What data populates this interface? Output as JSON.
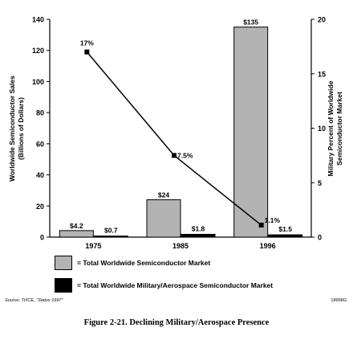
{
  "chart_data": {
    "type": "bar",
    "categories": [
      "1975",
      "1985",
      "1996"
    ],
    "series": [
      {
        "name": "= Total Worldwide Semiconductor Market",
        "values": [
          4.2,
          24,
          135
        ],
        "labels": [
          "$4.2",
          "$24",
          "$135"
        ],
        "color": "#b3b3b3"
      },
      {
        "name": "= Total Worldwide Military/Aerospace Semiconductor Market",
        "values": [
          0.7,
          1.8,
          1.5
        ],
        "labels": [
          "$0.7",
          "$1.8",
          "$1.5"
        ],
        "color": "#000000"
      }
    ],
    "line_series": {
      "values": [
        17,
        7.5,
        1.1
      ],
      "labels": [
        "17%",
        "7.5%",
        "1.1%"
      ],
      "axis": "right"
    },
    "ylabel_left": [
      "Worldwide Semiconductor Sales",
      "(Billions of Dollars)"
    ],
    "ylabel_right": [
      "Military Percent of Worldwide",
      "Semiconductor Market"
    ],
    "ylim_left": [
      0,
      140
    ],
    "yticks_left": [
      0,
      20,
      40,
      60,
      80,
      100,
      120,
      140
    ],
    "ylim_right": [
      0,
      20
    ],
    "yticks_right": [
      0,
      5,
      10,
      15,
      20
    ],
    "grid": false,
    "legend_position": "bottom"
  },
  "source": "Source:  TI/ICE, \"Status 1997\"",
  "figure_id": "18958G",
  "caption": "Figure 2-21.  Declining Military/Aerospace Presence"
}
